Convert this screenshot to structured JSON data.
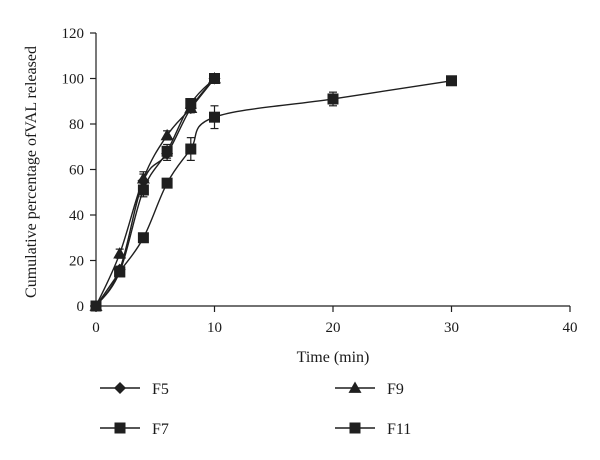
{
  "chart_data": {
    "type": "line",
    "xlabel": "Time (min)",
    "ylabel": "Cumulative percentage ofVAL released",
    "xlim": [
      0,
      40
    ],
    "ylim": [
      0,
      120
    ],
    "xticks": [
      0,
      10,
      20,
      30,
      40
    ],
    "yticks": [
      0,
      20,
      40,
      60,
      80,
      100,
      120
    ],
    "grid": false,
    "legend_position": "bottom",
    "series": [
      {
        "name": "F5",
        "marker": "diamond",
        "x": [
          0,
          2,
          4,
          6,
          8,
          10
        ],
        "y": [
          0,
          16,
          55,
          67,
          87,
          100
        ],
        "err": [
          0,
          1.5,
          3,
          3,
          2,
          1
        ]
      },
      {
        "name": "F9",
        "marker": "triangle",
        "x": [
          0,
          2,
          4,
          6,
          8,
          10
        ],
        "y": [
          0,
          23,
          56,
          75,
          87,
          100
        ],
        "err": [
          0,
          2,
          3,
          2,
          2,
          1
        ]
      },
      {
        "name": "F7",
        "marker": "square",
        "x": [
          0,
          2,
          4,
          6,
          8,
          10
        ],
        "y": [
          0,
          15,
          51,
          68,
          89,
          100
        ],
        "err": [
          0,
          1.5,
          3,
          3,
          2,
          1
        ]
      },
      {
        "name": "F11",
        "marker": "square",
        "x": [
          0,
          2,
          4,
          6,
          8,
          10,
          20,
          30
        ],
        "y": [
          0,
          15,
          30,
          54,
          69,
          83,
          91,
          99
        ],
        "err": [
          0,
          1.5,
          2,
          2,
          5,
          5,
          3,
          2
        ]
      }
    ]
  }
}
